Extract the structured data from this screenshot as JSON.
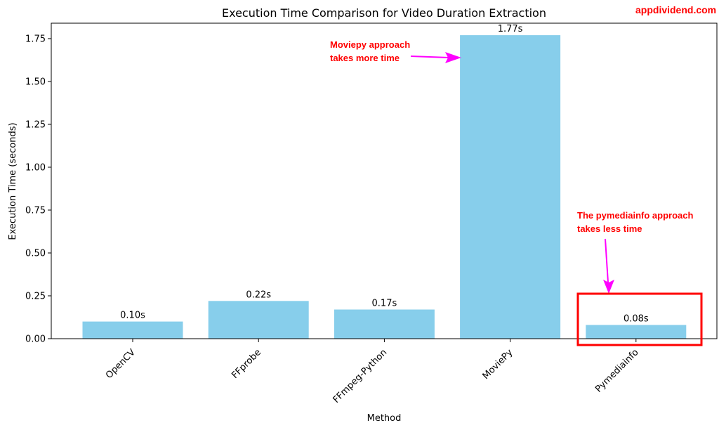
{
  "watermark": "appdividend.com",
  "chart_data": {
    "type": "bar",
    "title": "Execution Time Comparison for Video Duration Extraction",
    "xlabel": "Method",
    "ylabel": "Execution Time (seconds)",
    "categories": [
      "OpenCV",
      "FFprobe",
      "FFmpeg-Python",
      "MoviePy",
      "Pymediainfo"
    ],
    "values": [
      0.1,
      0.22,
      0.17,
      1.77,
      0.08
    ],
    "data_labels": [
      "0.10s",
      "0.22s",
      "0.17s",
      "1.77s",
      "0.08s"
    ],
    "ylim": [
      0,
      1.84
    ],
    "yticks": [
      "0.00",
      "0.25",
      "0.50",
      "0.75",
      "1.00",
      "1.25",
      "1.50",
      "1.75"
    ],
    "grid": false,
    "bar_color": "#87ceeb",
    "annotation_color": "#ff0000",
    "arrow_color": "#ff00ff"
  },
  "annotations": {
    "moviepy": {
      "line1": "Moviepy approach",
      "line2": "takes more time"
    },
    "pymediainfo": {
      "line1": "The pymediainfo approach",
      "line2": "takes less time"
    }
  }
}
